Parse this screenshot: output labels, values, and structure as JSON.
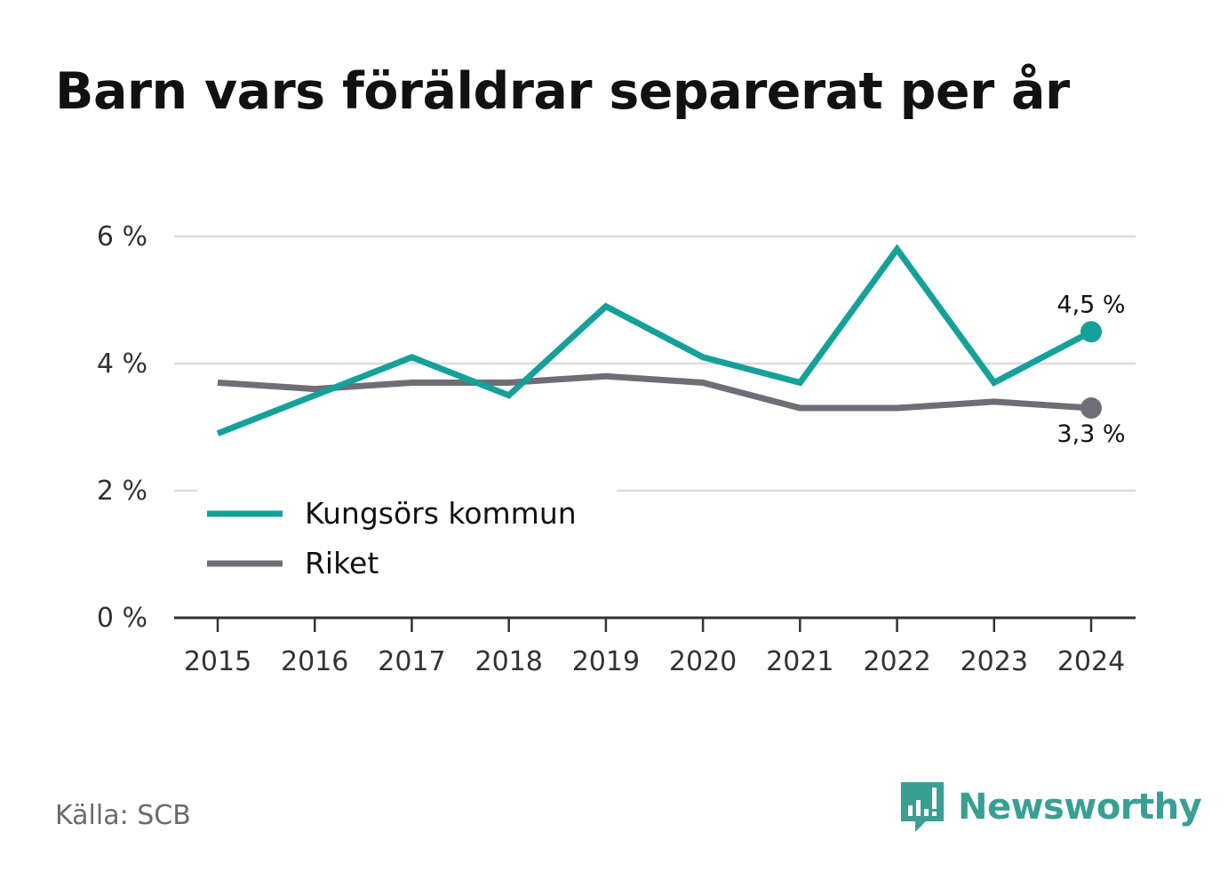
{
  "title": "Barn vars föräldrar separerat per år",
  "source": "Källa: SCB",
  "brand": {
    "name": "Newsworthy",
    "icon": "bar-chart-speech-bubble-icon",
    "color": "#3a9f93"
  },
  "chart_data": {
    "type": "line",
    "title": "Barn vars föräldrar separerat per år",
    "x": [
      "2015",
      "2016",
      "2017",
      "2018",
      "2019",
      "2020",
      "2021",
      "2022",
      "2023",
      "2024"
    ],
    "ylim": [
      0,
      6
    ],
    "yticks": [
      0,
      2,
      4,
      6
    ],
    "ytick_labels": [
      "0 %",
      "2 %",
      "4 %",
      "6 %"
    ],
    "grid": true,
    "legend_position": "lower-left",
    "series": [
      {
        "name": "Kungsörs kommun",
        "color": "#14a19a",
        "values": [
          2.9,
          3.5,
          4.1,
          3.5,
          4.9,
          4.1,
          3.7,
          5.8,
          3.7,
          4.5
        ],
        "end_label": "4,5 %"
      },
      {
        "name": "Riket",
        "color": "#6f6e76",
        "values": [
          3.7,
          3.6,
          3.7,
          3.7,
          3.8,
          3.7,
          3.3,
          3.3,
          3.4,
          3.3
        ],
        "end_label": "3,3 %"
      }
    ]
  }
}
